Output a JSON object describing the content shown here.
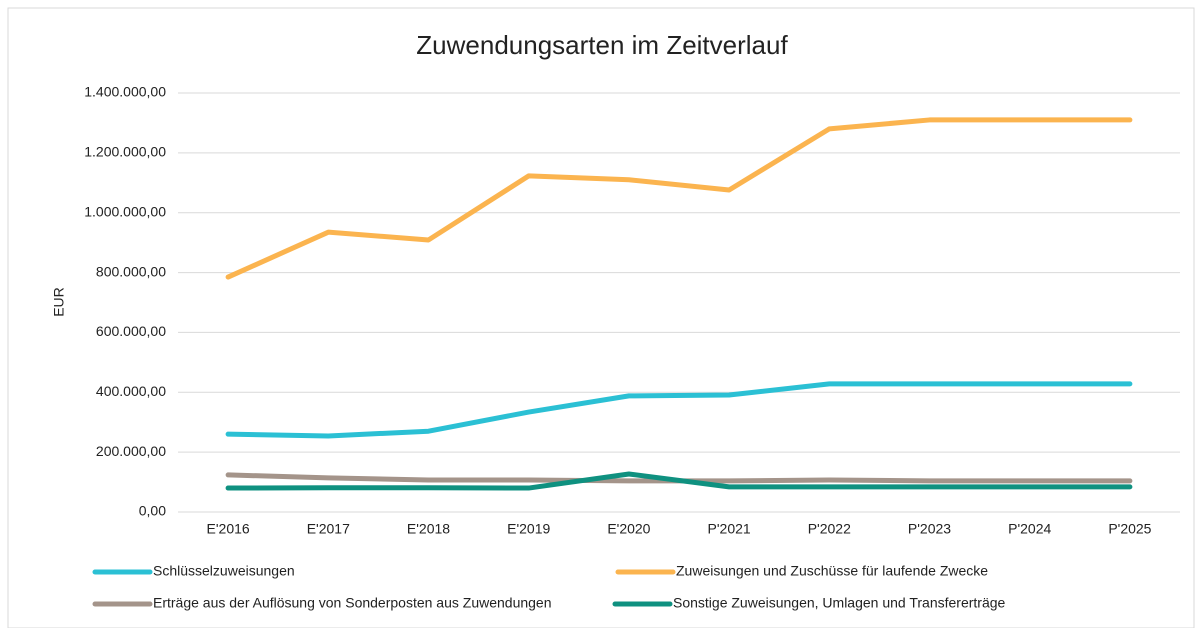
{
  "chart_data": {
    "type": "line",
    "title": "Zuwendungsarten im Zeitverlauf",
    "y_label": "EUR",
    "categories": [
      "E'2016",
      "E'2017",
      "E'2018",
      "E'2019",
      "E'2020",
      "P'2021",
      "P'2022",
      "P'2023",
      "P'2024",
      "P'2025"
    ],
    "series": [
      {
        "name": "Schlüsselzuweisungen",
        "color": "#2bc0d4",
        "values": [
          260000,
          254000,
          270000,
          334000,
          388000,
          391000,
          428000,
          428000,
          428000,
          428000
        ]
      },
      {
        "name": "Zuweisungen und Zuschüsse für laufende Zwecke",
        "color": "#fbb44f",
        "values": [
          785000,
          935000,
          909000,
          1123000,
          1110000,
          1076000,
          1280000,
          1310000,
          1310000,
          1310000
        ]
      },
      {
        "name": "Erträge aus der Auflösung von Sonderposten aus Zuwendungen",
        "color": "#a4948a",
        "values": [
          124000,
          114000,
          107000,
          107000,
          104000,
          104000,
          107000,
          104000,
          104000,
          104000
        ]
      },
      {
        "name": "Sonstige Zuweisungen, Umlagen und Transfererträge",
        "color": "#0f9180",
        "values": [
          80000,
          81000,
          81000,
          80000,
          127000,
          84000,
          84000,
          84000,
          84000,
          84000
        ]
      }
    ],
    "ylim": [
      0,
      1400000
    ],
    "yticks": [
      {
        "value": 0,
        "label": "0,00"
      },
      {
        "value": 200000,
        "label": "200.000,00"
      },
      {
        "value": 400000,
        "label": "400.000,00"
      },
      {
        "value": 600000,
        "label": "600.000,00"
      },
      {
        "value": 800000,
        "label": "800.000,00"
      },
      {
        "value": 1000000,
        "label": "1.000.000,00"
      },
      {
        "value": 1200000,
        "label": "1.200.000,00"
      },
      {
        "value": 1400000,
        "label": "1.400.000,00"
      }
    ],
    "grid": true
  }
}
